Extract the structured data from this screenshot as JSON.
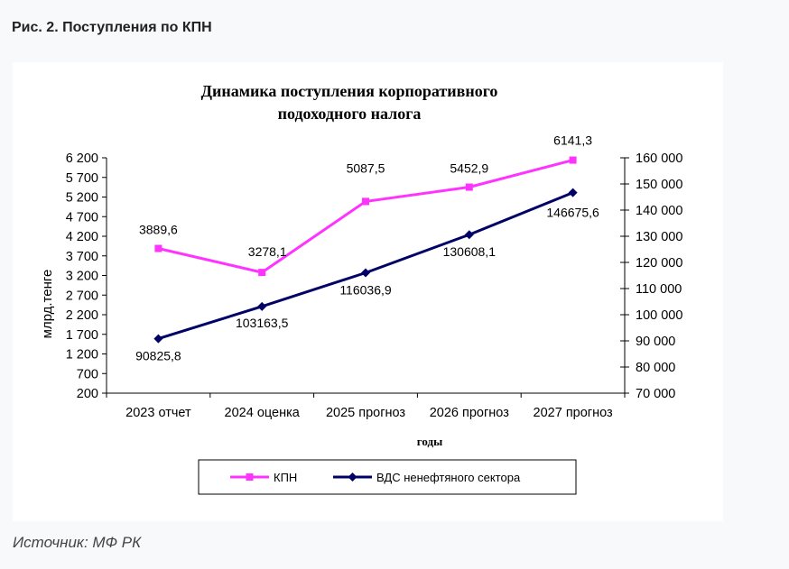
{
  "figure_caption": "Рис. 2. Поступления по КПН",
  "source_note": "Источник: МФ РК",
  "chart_data": {
    "type": "line",
    "title_line1": "Динамика поступления корпоративного",
    "title_line2": "подоходного налога",
    "xlabel": "годы",
    "ylabel_left": "млрд.тенге",
    "categories": [
      "2023 отчет",
      "2024 оценка",
      "2025 прогноз",
      "2026 прогноз",
      "2027 прогноз"
    ],
    "y_left": {
      "min": 200,
      "max": 6200,
      "ticks": [
        200,
        700,
        1200,
        1700,
        2200,
        2700,
        3200,
        3700,
        4200,
        4700,
        5200,
        5700,
        6200
      ],
      "tick_labels": [
        "200",
        "700",
        "1 200",
        "1 700",
        "2 200",
        "2 700",
        "3 200",
        "3 700",
        "4 200",
        "4 700",
        "5 200",
        "5 700",
        "6 200"
      ]
    },
    "y_right": {
      "min": 70000,
      "max": 160000,
      "ticks": [
        70000,
        80000,
        90000,
        100000,
        110000,
        120000,
        130000,
        140000,
        150000,
        160000
      ],
      "tick_labels": [
        "70 000",
        "80 000",
        "90 000",
        "100 000",
        "110 000",
        "120 000",
        "130 000",
        "140 000",
        "150 000",
        "160 000"
      ]
    },
    "series": [
      {
        "name": "КПН",
        "axis": "left",
        "color": "#ff33ff",
        "marker": "square",
        "values": [
          3889.6,
          3278.1,
          5087.5,
          5452.9,
          6141.3
        ],
        "labels": [
          "3889,6",
          "3278,1",
          "5087,5",
          "5452,9",
          "6141,3"
        ]
      },
      {
        "name": "ВДС ненефтяного сектора",
        "axis": "right",
        "color": "#000066",
        "marker": "diamond",
        "values": [
          90825.8,
          103163.5,
          116036.9,
          130608.1,
          146675.6
        ],
        "labels": [
          "90825,8",
          "103163,5",
          "116036,9",
          "130608,1",
          "146675,6"
        ]
      }
    ],
    "legend_position": "bottom"
  }
}
